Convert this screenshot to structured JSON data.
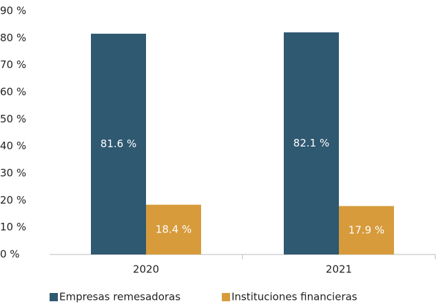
{
  "chart_data": {
    "type": "bar",
    "categories": [
      "2020",
      "2021"
    ],
    "series": [
      {
        "name": "Empresas remesadoras",
        "color": "#2f5871",
        "values": [
          81.6,
          82.1
        ],
        "value_labels": [
          "81.6 %",
          "82.1 %"
        ]
      },
      {
        "name": "Instituciones financieras",
        "color": "#d79b3c",
        "values": [
          18.4,
          17.9
        ],
        "value_labels": [
          "18.4 %",
          "17.9 %"
        ]
      }
    ],
    "ylim": [
      0,
      90
    ],
    "yticks": [
      {
        "value": 0,
        "label": "0 %"
      },
      {
        "value": 10,
        "label": "10 %"
      },
      {
        "value": 20,
        "label": "20 %"
      },
      {
        "value": 30,
        "label": "30 %"
      },
      {
        "value": 40,
        "label": "40 %"
      },
      {
        "value": 50,
        "label": "50 %"
      },
      {
        "value": 60,
        "label": "60 %"
      },
      {
        "value": 70,
        "label": "70 %"
      },
      {
        "value": 80,
        "label": "80 %"
      },
      {
        "value": 90,
        "label": "90 %"
      }
    ],
    "grid": false,
    "legend": "bottom"
  }
}
